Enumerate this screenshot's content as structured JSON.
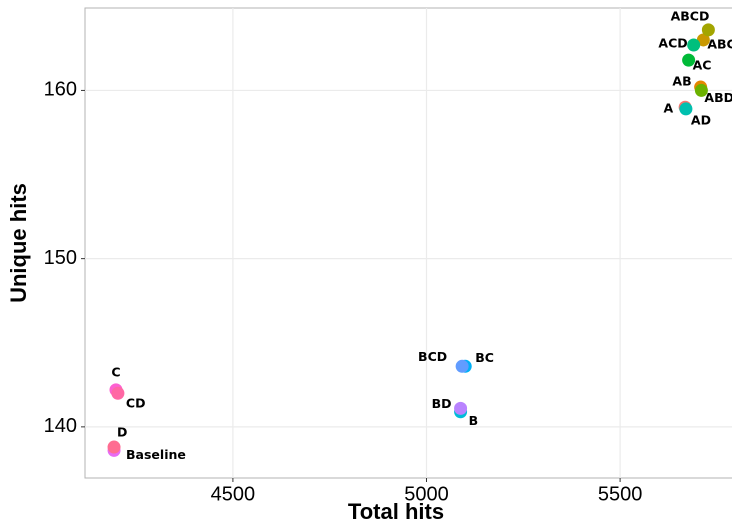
{
  "chart_data": {
    "type": "scatter",
    "x_label": "Total hits",
    "y_label": "Unique hits",
    "xlim": [
      4118,
      5789
    ],
    "ylim": [
      136.96,
      164.9
    ],
    "xticks": [
      4500,
      5000,
      5500
    ],
    "yticks": [
      140,
      150,
      160
    ],
    "grid": true,
    "series": [
      {
        "name": "A",
        "color": "#F8766D",
        "x": [
          5668
        ],
        "values": [
          159.0
        ]
      },
      {
        "name": "AB",
        "color": "#E58700",
        "x": [
          5708
        ],
        "values": [
          160.2
        ]
      },
      {
        "name": "ABC",
        "color": "#C99800",
        "x": [
          5715
        ],
        "values": [
          163.0
        ]
      },
      {
        "name": "ABCD",
        "color": "#A3A500",
        "x": [
          5728
        ],
        "values": [
          163.6
        ]
      },
      {
        "name": "ABD",
        "color": "#6BB100",
        "x": [
          5710
        ],
        "values": [
          160.0
        ]
      },
      {
        "name": "AC",
        "color": "#00BA38",
        "x": [
          5677
        ],
        "values": [
          161.8
        ]
      },
      {
        "name": "ACD",
        "color": "#00BF7D",
        "x": [
          5690
        ],
        "values": [
          162.7
        ]
      },
      {
        "name": "AD",
        "color": "#00C0AF",
        "x": [
          5670
        ],
        "values": [
          158.9
        ]
      },
      {
        "name": "B",
        "color": "#00BCD8",
        "x": [
          5088
        ],
        "values": [
          140.9
        ]
      },
      {
        "name": "BC",
        "color": "#00B0F6",
        "x": [
          5100
        ],
        "values": [
          143.6
        ]
      },
      {
        "name": "BCD",
        "color": "#619CFF",
        "x": [
          5092
        ],
        "values": [
          143.6
        ]
      },
      {
        "name": "BD",
        "color": "#B983FF",
        "x": [
          5088
        ],
        "values": [
          141.1
        ]
      },
      {
        "name": "Baseline",
        "color": "#E76BF3",
        "x": [
          4193
        ],
        "values": [
          138.6
        ]
      },
      {
        "name": "C",
        "color": "#FD61D1",
        "x": [
          4198
        ],
        "values": [
          142.2
        ]
      },
      {
        "name": "CD",
        "color": "#FF67A4",
        "x": [
          4203
        ],
        "values": [
          142.0
        ]
      },
      {
        "name": "D",
        "color": "#FF6C91",
        "x": [
          4193
        ],
        "values": [
          138.8
        ]
      }
    ]
  }
}
